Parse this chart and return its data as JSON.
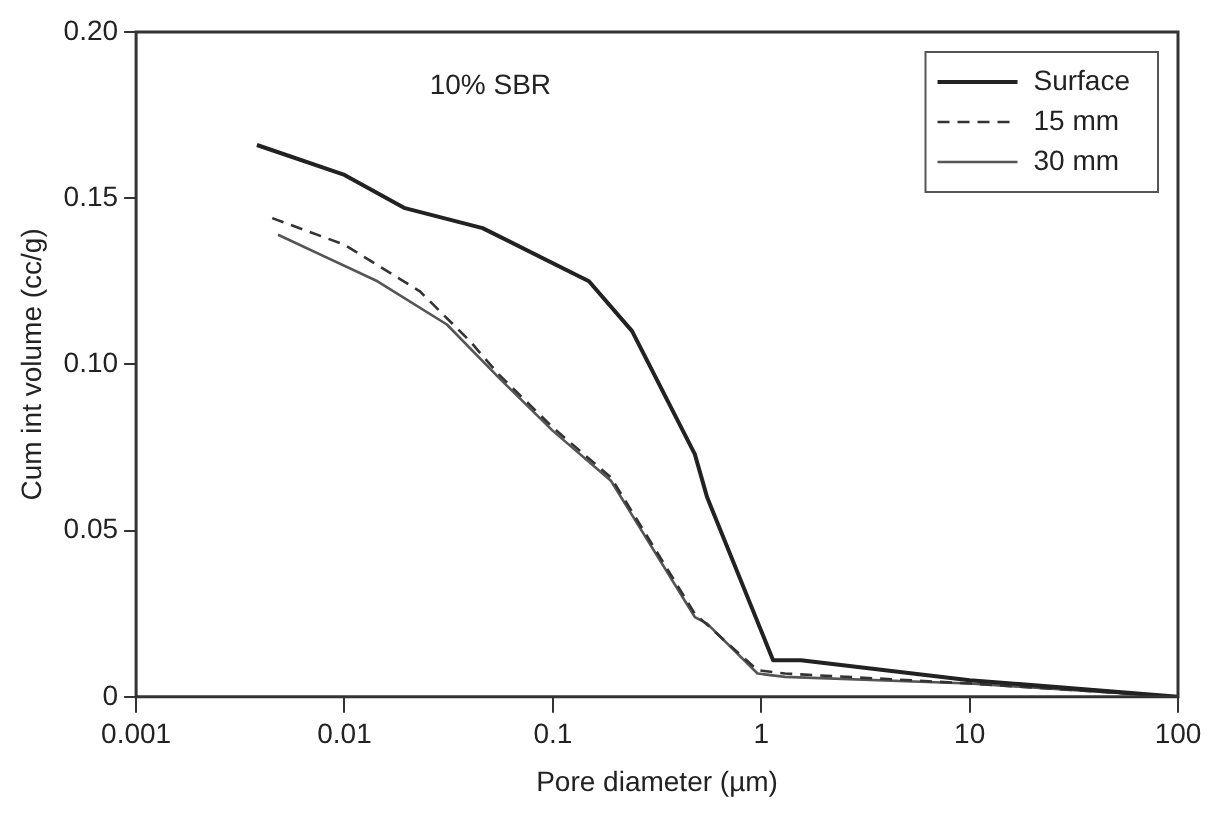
{
  "chart_data": {
    "type": "line",
    "xlabel": "Pore diameter (µm)",
    "ylabel": "Cum int volume (cc/g)",
    "annotations": [
      "10% SBR"
    ],
    "log": "x",
    "xlim": [
      0.001,
      100
    ],
    "xticks": [
      0.001,
      0.01,
      0.1,
      1,
      10,
      100
    ],
    "ylim": [
      0,
      0.2
    ],
    "yticks": [
      0,
      {
        "value": 0.05,
        "label": "0.05"
      },
      {
        "value": 0.1,
        "label": "0.10"
      },
      {
        "value": 0.15,
        "label": "0.15"
      },
      {
        "value": 0.2,
        "label": "0.20"
      }
    ],
    "grid": false,
    "legend": "top right",
    "marker": "none",
    "series": [
      {
        "name": "Surface",
        "color": "#222222",
        "line_style": "solid",
        "x": [
          0.0038,
          0.01,
          0.0195,
          0.046,
          0.149,
          0.24,
          0.48,
          0.55,
          1.14,
          1.55,
          10,
          100
        ],
        "values": [
          0.166,
          0.157,
          0.147,
          0.141,
          0.125,
          0.11,
          0.073,
          0.06,
          0.011,
          0.011,
          0.005,
          0
        ]
      },
      {
        "name": "15 mm",
        "color": "#333333",
        "line_style": "dashed",
        "x": [
          0.0045,
          0.01,
          0.023,
          0.04,
          0.055,
          0.1,
          0.19,
          0.48,
          0.96,
          1.3,
          10,
          100
        ],
        "values": [
          0.144,
          0.136,
          0.122,
          0.107,
          0.097,
          0.081,
          0.066,
          0.025,
          0.008,
          0.007,
          0.004,
          0
        ]
      },
      {
        "name": "30 mm",
        "color": "#555555",
        "line_style": "solid",
        "x": [
          0.0048,
          0.0144,
          0.031,
          0.055,
          0.1,
          0.19,
          0.48,
          0.55,
          0.96,
          1.3,
          10,
          100
        ],
        "values": [
          0.139,
          0.125,
          0.112,
          0.096,
          0.08,
          0.065,
          0.024,
          0.022,
          0.007,
          0.006,
          0.004,
          0
        ]
      }
    ]
  }
}
